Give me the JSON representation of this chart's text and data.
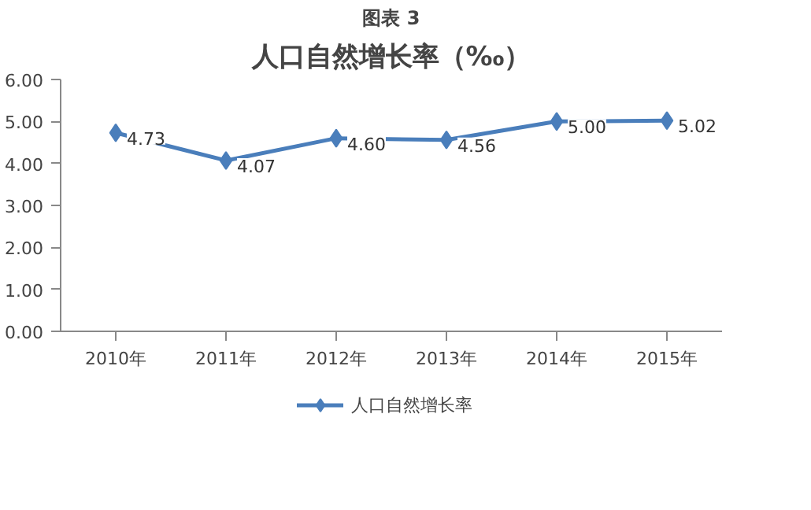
{
  "chart_data": {
    "type": "line",
    "title": "图表 3",
    "subtitle": "人口自然增长率（‰）",
    "categories": [
      "2010年",
      "2011年",
      "2012年",
      "2013年",
      "2014年",
      "2015年"
    ],
    "series": [
      {
        "name": "人口自然增长率",
        "color": "#4a7ebb",
        "values": [
          4.73,
          4.07,
          4.6,
          4.56,
          5.0,
          5.02
        ]
      }
    ],
    "ylim": [
      0,
      6
    ],
    "yticks": [
      {
        "value": 0,
        "label": "0.00"
      },
      {
        "value": 1,
        "label": "1.00"
      },
      {
        "value": 2,
        "label": "2.00"
      },
      {
        "value": 3,
        "label": "3.00"
      },
      {
        "value": 4,
        "label": "4.00"
      },
      {
        "value": 5,
        "label": "5.00"
      },
      {
        "value": 6,
        "label": "6.00"
      }
    ],
    "value_labels": [
      "4.73",
      "4.07",
      "4.60",
      "4.56",
      "5.00",
      "5.02"
    ],
    "marker": "diamond",
    "legend": "bottom",
    "grid": false
  }
}
